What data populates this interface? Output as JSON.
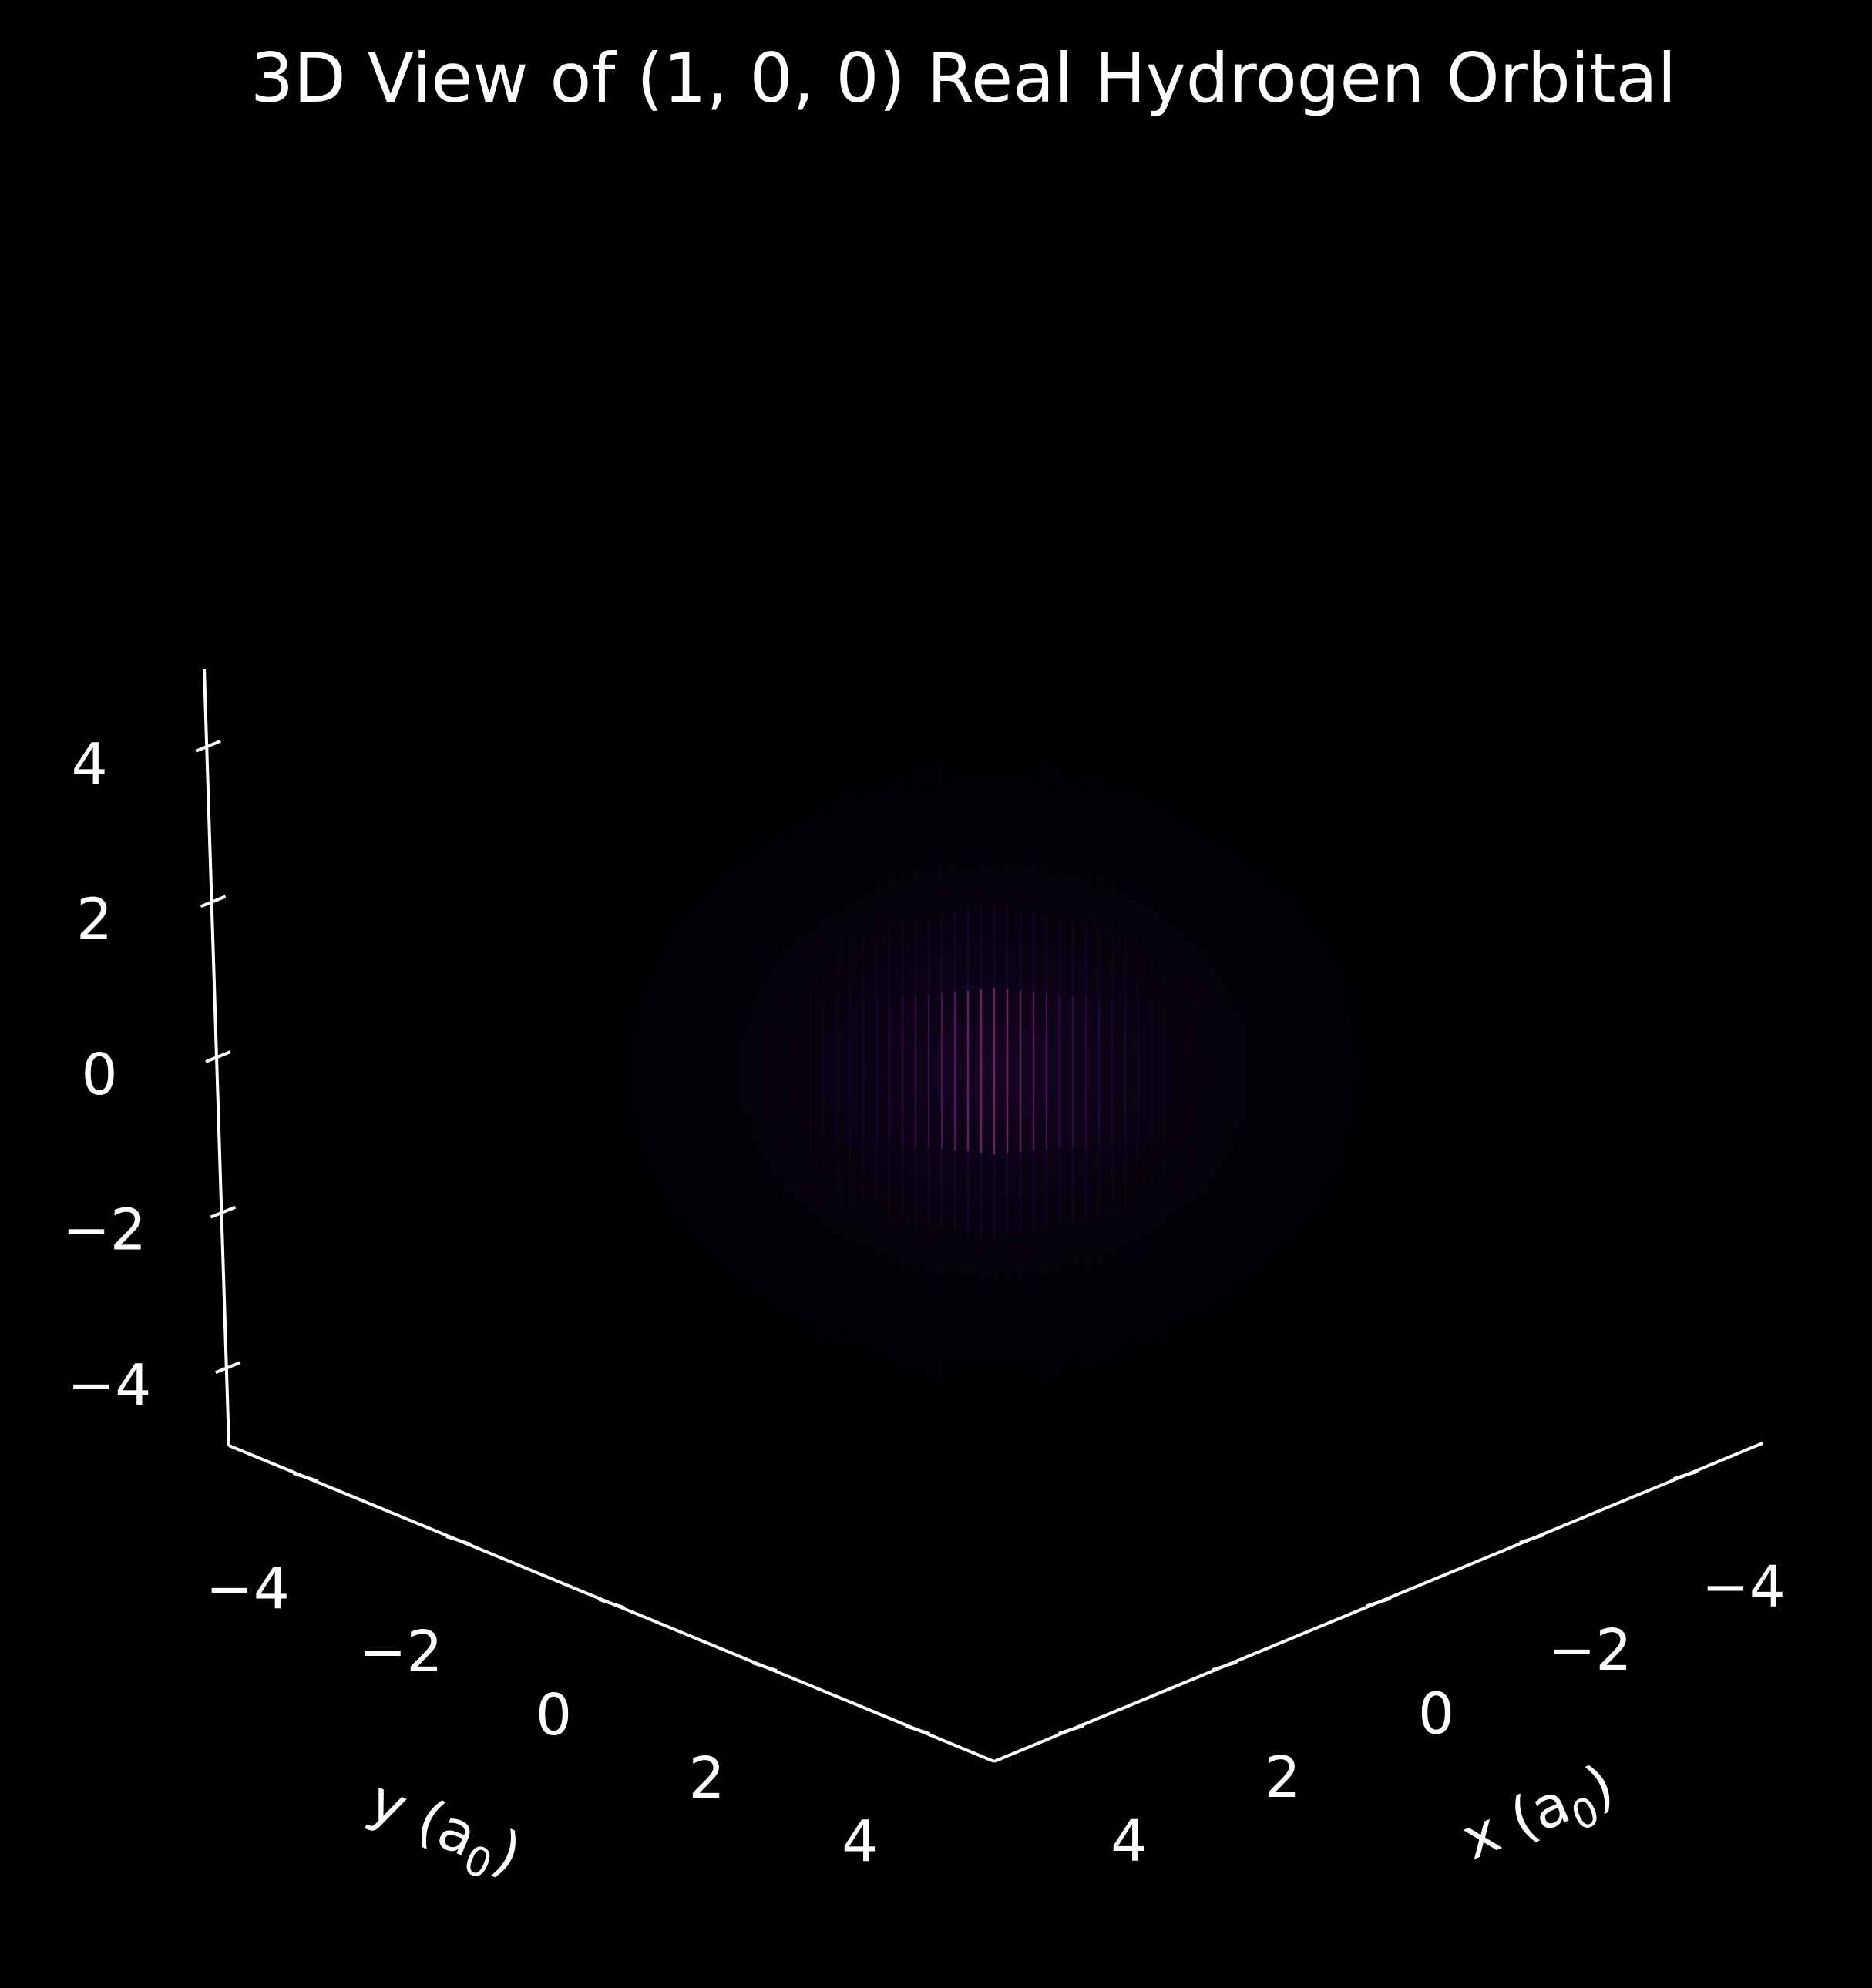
{
  "chart_data": {
    "type": "scatter",
    "projection": "3d",
    "title": "3D View of (1, 0, 0) Real Hydrogen Orbital",
    "background_color": "#000000",
    "foreground_color": "#ffffff",
    "colormap": [
      "#000000",
      "#0b0330",
      "#3b0f70",
      "#8c2981",
      "#de4968",
      "#fe9f6d"
    ],
    "orbital": {
      "n": 1,
      "l": 0,
      "m": 0
    },
    "x_axis": {
      "label_main": "x (a",
      "label_sub": "0",
      "label_close": ")",
      "ticks": [
        -4,
        -2,
        0,
        2,
        4
      ],
      "tick_labels": [
        "−4",
        "−2",
        "0",
        "2",
        "4"
      ],
      "lim": [
        -5,
        5
      ]
    },
    "y_axis": {
      "label_main": "y (a",
      "label_sub": "0",
      "label_close": ")",
      "ticks": [
        -4,
        -2,
        0,
        2,
        4
      ],
      "tick_labels": [
        "−4",
        "−2",
        "0",
        "2",
        "4"
      ],
      "lim": [
        -5,
        5
      ]
    },
    "z_axis": {
      "label": "",
      "ticks": [
        -4,
        -2,
        0,
        2,
        4
      ],
      "tick_labels": [
        "−4",
        "−2",
        "0",
        "2",
        "4"
      ],
      "lim": [
        -5,
        5
      ]
    },
    "grid": false,
    "density_peak_center": [
      0,
      0,
      0
    ],
    "density_falloff_scale": 1.0
  }
}
